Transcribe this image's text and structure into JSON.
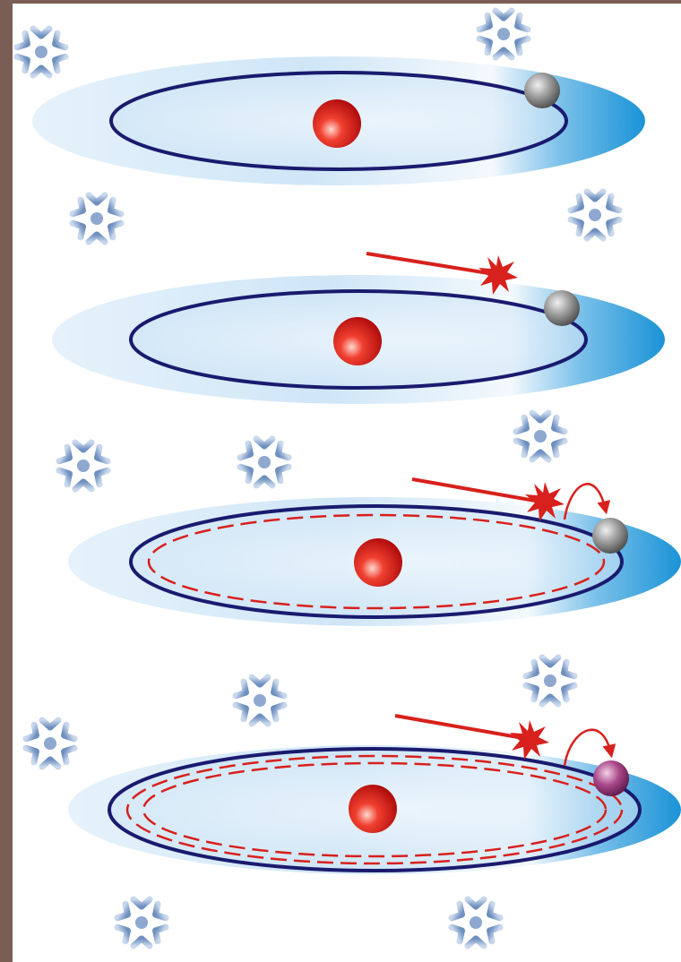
{
  "colors": {
    "frame": "#7a5e55",
    "canvas": "#ffffff",
    "orbit": "#1a1a6e",
    "laser": "#d8201c",
    "nucleus": "#e02020",
    "electron_ground": "#888888",
    "electron_excited": "#a0407a",
    "disk_light": "#eef6fc",
    "disk_mid": "#c7e2f6",
    "disk_dark": "#1a93d6",
    "snowflake": "#8fa9cc"
  },
  "panels": [
    {
      "step": 1,
      "laser": false,
      "kick": false,
      "dashed_orbits": 0,
      "electron": "ground"
    },
    {
      "step": 2,
      "laser": true,
      "kick": false,
      "dashed_orbits": 0,
      "electron": "ground"
    },
    {
      "step": 3,
      "laser": true,
      "kick": true,
      "dashed_orbits": 1,
      "electron": "ground"
    },
    {
      "step": 4,
      "laser": true,
      "kick": true,
      "dashed_orbits": 2,
      "electron": "excited"
    }
  ],
  "icons": {
    "snowflake": "snowflake-icon",
    "burst": "photon-burst-icon"
  }
}
